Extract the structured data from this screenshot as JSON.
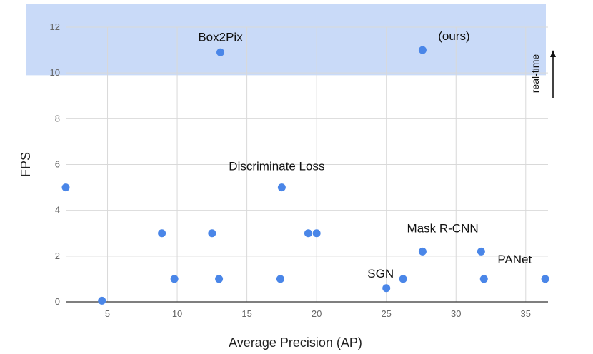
{
  "chart_data": {
    "type": "scatter",
    "title": "",
    "xlabel": "Average Precision (AP)",
    "ylabel": "FPS",
    "xlim": [
      2,
      36.6
    ],
    "ylim": [
      0,
      12
    ],
    "xticks": [
      5,
      10,
      15,
      20,
      25,
      30,
      35
    ],
    "yticks": [
      0,
      2,
      4,
      6,
      8,
      10,
      12
    ],
    "grid": true,
    "legend": "none",
    "marker_color": "#4a86e8",
    "points": [
      {
        "x": 2.0,
        "y": 5
      },
      {
        "x": 4.6,
        "y": 0.05
      },
      {
        "x": 8.9,
        "y": 3
      },
      {
        "x": 9.8,
        "y": 1
      },
      {
        "x": 12.5,
        "y": 3
      },
      {
        "x": 13.0,
        "y": 1
      },
      {
        "x": 13.1,
        "y": 10.9
      },
      {
        "x": 17.4,
        "y": 1
      },
      {
        "x": 17.5,
        "y": 5
      },
      {
        "x": 19.4,
        "y": 3
      },
      {
        "x": 20.0,
        "y": 3
      },
      {
        "x": 25.0,
        "y": 0.6
      },
      {
        "x": 26.2,
        "y": 1
      },
      {
        "x": 27.6,
        "y": 2.2
      },
      {
        "x": 27.6,
        "y": 11.0
      },
      {
        "x": 31.8,
        "y": 2.2
      },
      {
        "x": 32.0,
        "y": 1
      },
      {
        "x": 36.4,
        "y": 1
      }
    ],
    "highlight_region": {
      "y_from": 9.9,
      "y_to": 12.9,
      "color": "#c9daf8",
      "label": "real-time"
    },
    "annotations": [
      {
        "text": "Box2Pix",
        "x": 13.1,
        "y": 10.9
      },
      {
        "text": "(ours)",
        "x": 27.6,
        "y": 11.0
      },
      {
        "text": "Discriminate Loss",
        "x": 17.5,
        "y": 5
      },
      {
        "text": "Mask R-CNN",
        "x": 29.3,
        "y": 2.2
      },
      {
        "text": "PANet",
        "x": 32.0,
        "y": 1
      },
      {
        "text": "SGN",
        "x": 25.0,
        "y": 0.6
      }
    ]
  }
}
